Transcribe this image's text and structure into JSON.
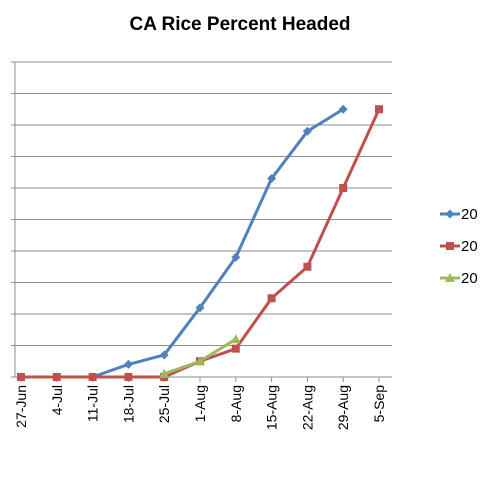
{
  "chart_data": {
    "type": "line",
    "title": "CA Rice Percent Headed",
    "xlabel": "",
    "ylabel": "",
    "categories": [
      "27-Jun",
      "4-Jul",
      "11-Jul",
      "18-Jul",
      "25-Jul",
      "1-Aug",
      "8-Aug",
      "15-Aug",
      "22-Aug",
      "29-Aug",
      "5-Sep"
    ],
    "ylim": [
      0,
      100
    ],
    "grid": true,
    "legend_position": "right",
    "series": [
      {
        "name": "20",
        "color": "#4F81BD",
        "marker": "diamond",
        "values": [
          0,
          0,
          0,
          4,
          7,
          22,
          38,
          63,
          78,
          85,
          null
        ]
      },
      {
        "name": "20",
        "color": "#C0504D",
        "marker": "square",
        "values": [
          0,
          0,
          0,
          0,
          0,
          5,
          9,
          25,
          35,
          60,
          85
        ]
      },
      {
        "name": "20",
        "color": "#9BBB59",
        "marker": "triangle",
        "values": [
          null,
          null,
          null,
          null,
          1,
          5,
          12,
          null,
          null,
          null,
          null
        ]
      }
    ]
  }
}
